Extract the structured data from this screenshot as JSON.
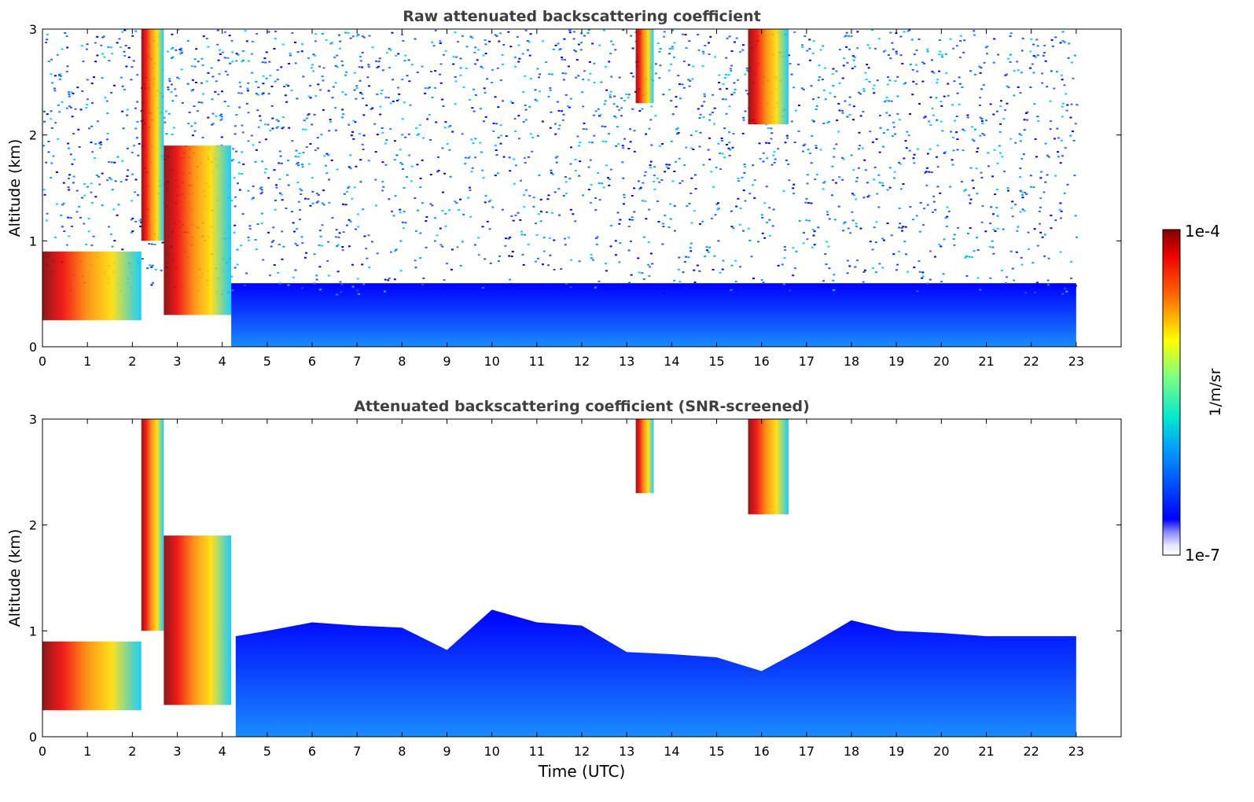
{
  "chart_data": [
    {
      "type": "heatmap",
      "title": "Raw attenuated backscattering coefficient",
      "xlabel": "",
      "ylabel": "Altitude (km)",
      "xlim": [
        0,
        24
      ],
      "ylim": [
        0,
        3
      ],
      "x_ticks": [
        "0",
        "1",
        "2",
        "3",
        "4",
        "5",
        "6",
        "7",
        "8",
        "9",
        "10",
        "11",
        "12",
        "13",
        "14",
        "15",
        "16",
        "17",
        "18",
        "19",
        "20",
        "21",
        "22",
        "23"
      ],
      "y_ticks": [
        "0",
        "1",
        "2",
        "3"
      ],
      "data_extent_hours": [
        0,
        23
      ],
      "features": [
        {
          "description": "low boundary-layer aerosol / cloud band",
          "x_range": [
            0,
            2.2
          ],
          "altitude_km": [
            0.25,
            0.9
          ],
          "level": "high"
        },
        {
          "description": "tall cloud column",
          "x_range": [
            2.2,
            2.7
          ],
          "altitude_km": [
            1.0,
            3.0
          ],
          "level": "high"
        },
        {
          "description": "cloud cluster",
          "x_range": [
            2.7,
            4.2
          ],
          "altitude_km": [
            0.3,
            1.9
          ],
          "level": "high"
        },
        {
          "description": "dense lower layer",
          "x_range": [
            4.2,
            23
          ],
          "altitude_km": [
            0,
            0.6
          ],
          "level": "medium"
        },
        {
          "description": "upper cloud streak",
          "x_range": [
            13.2,
            13.6
          ],
          "altitude_km": [
            2.3,
            3.0
          ],
          "level": "high"
        },
        {
          "description": "upper cloud streak",
          "x_range": [
            15.7,
            16.6
          ],
          "altitude_km": [
            2.1,
            3.0
          ],
          "level": "high"
        }
      ]
    },
    {
      "type": "heatmap",
      "title": "Attenuated backscattering coefficient (SNR-screened)",
      "xlabel": "Time (UTC)",
      "ylabel": "Altitude (km)",
      "xlim": [
        0,
        24
      ],
      "ylim": [
        0,
        3
      ],
      "x_ticks": [
        "0",
        "1",
        "2",
        "3",
        "4",
        "5",
        "6",
        "7",
        "8",
        "9",
        "10",
        "11",
        "12",
        "13",
        "14",
        "15",
        "16",
        "17",
        "18",
        "19",
        "20",
        "21",
        "22",
        "23"
      ],
      "y_ticks": [
        "0",
        "1",
        "2",
        "3"
      ],
      "data_extent_hours": [
        0,
        23
      ],
      "boundary_layer_top_km": [
        [
          4.3,
          0.95
        ],
        [
          5,
          1.0
        ],
        [
          6,
          1.08
        ],
        [
          7,
          1.05
        ],
        [
          8,
          1.03
        ],
        [
          9,
          0.82
        ],
        [
          10,
          1.2
        ],
        [
          11,
          1.08
        ],
        [
          12,
          1.05
        ],
        [
          13,
          0.8
        ],
        [
          14,
          0.78
        ],
        [
          15,
          0.75
        ],
        [
          16,
          0.62
        ],
        [
          17,
          0.85
        ],
        [
          18,
          1.1
        ],
        [
          19,
          1.0
        ],
        [
          20,
          0.98
        ],
        [
          21,
          0.95
        ],
        [
          22,
          0.95
        ],
        [
          23,
          0.95
        ]
      ]
    }
  ],
  "colorbar": {
    "label": "1/m/sr",
    "max_label": "1e-4",
    "min_label": "1e-7",
    "colormap": "jet"
  },
  "colors": {
    "background": "#ffffff",
    "title_text": "#404040",
    "axis": "#000000"
  }
}
